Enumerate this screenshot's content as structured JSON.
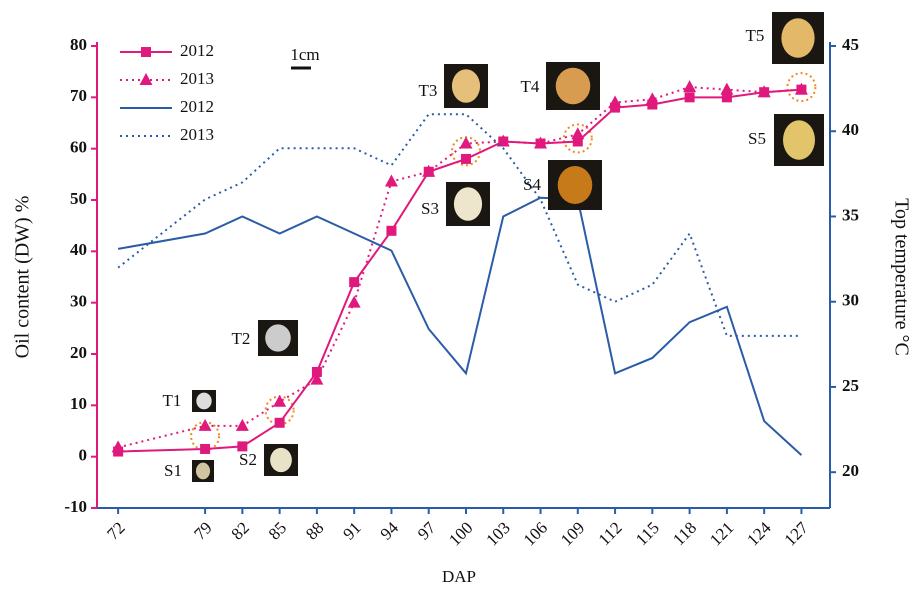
{
  "chart_data": {
    "type": "line",
    "x_label": "DAP",
    "y_label": "Oil content (DW) %",
    "y2_label": "Top temperature °C",
    "x": [
      72,
      79,
      82,
      85,
      88,
      91,
      94,
      97,
      100,
      103,
      106,
      109,
      112,
      115,
      118,
      121,
      124,
      127
    ],
    "xlim": [
      70.3,
      129.3
    ],
    "xticks": [
      72,
      79,
      82,
      85,
      88,
      91,
      94,
      97,
      100,
      103,
      106,
      109,
      112,
      115,
      118,
      121,
      124,
      127
    ],
    "ylim": [
      -10,
      80
    ],
    "yticks": [
      -10,
      0,
      10,
      20,
      30,
      40,
      50,
      60,
      70,
      80
    ],
    "y2lim": [
      17.9,
      45
    ],
    "y2ticks": [
      20,
      25,
      30,
      35,
      40,
      45
    ],
    "legend": "upper left",
    "series": [
      {
        "name": "2012",
        "color": "#e0197d",
        "marker": "square",
        "dash": "solid",
        "values": [
          1,
          1.5,
          2,
          6.6,
          16.5,
          34,
          44,
          55.5,
          58,
          61.4,
          61,
          61.4,
          68,
          68.6,
          70,
          70,
          71,
          71.5
        ]
      },
      {
        "name": "2013",
        "color": "#e0197d",
        "marker": "triangle",
        "dash": "dotted",
        "values": [
          1.8,
          6,
          6,
          10.7,
          15,
          30,
          53.6,
          55.5,
          61,
          61.4,
          61,
          62.8,
          69,
          69.6,
          72,
          71.5,
          71,
          71.5
        ]
      },
      {
        "name": "2012",
        "color": "#2a5ca8",
        "marker": "none",
        "dash": "solid",
        "axis": "y2",
        "values": [
          33.1,
          34,
          35,
          34,
          35,
          34,
          33,
          28.4,
          25.8,
          35,
          36.1,
          36,
          25.8,
          26.7,
          28.8,
          29.7,
          23,
          21
        ]
      },
      {
        "name": "2013",
        "color": "#2a5ca8",
        "marker": "none",
        "dash": "dotted",
        "axis": "y2",
        "values": [
          32,
          36,
          37,
          39,
          39,
          39,
          38,
          41,
          41,
          39,
          36,
          31,
          30,
          31,
          34,
          28,
          28,
          28
        ]
      }
    ],
    "annotations": [
      "T1",
      "S1",
      "T2",
      "S2",
      "T3",
      "S3",
      "T4",
      "S4",
      "T5",
      "S5",
      "1cm"
    ]
  }
}
